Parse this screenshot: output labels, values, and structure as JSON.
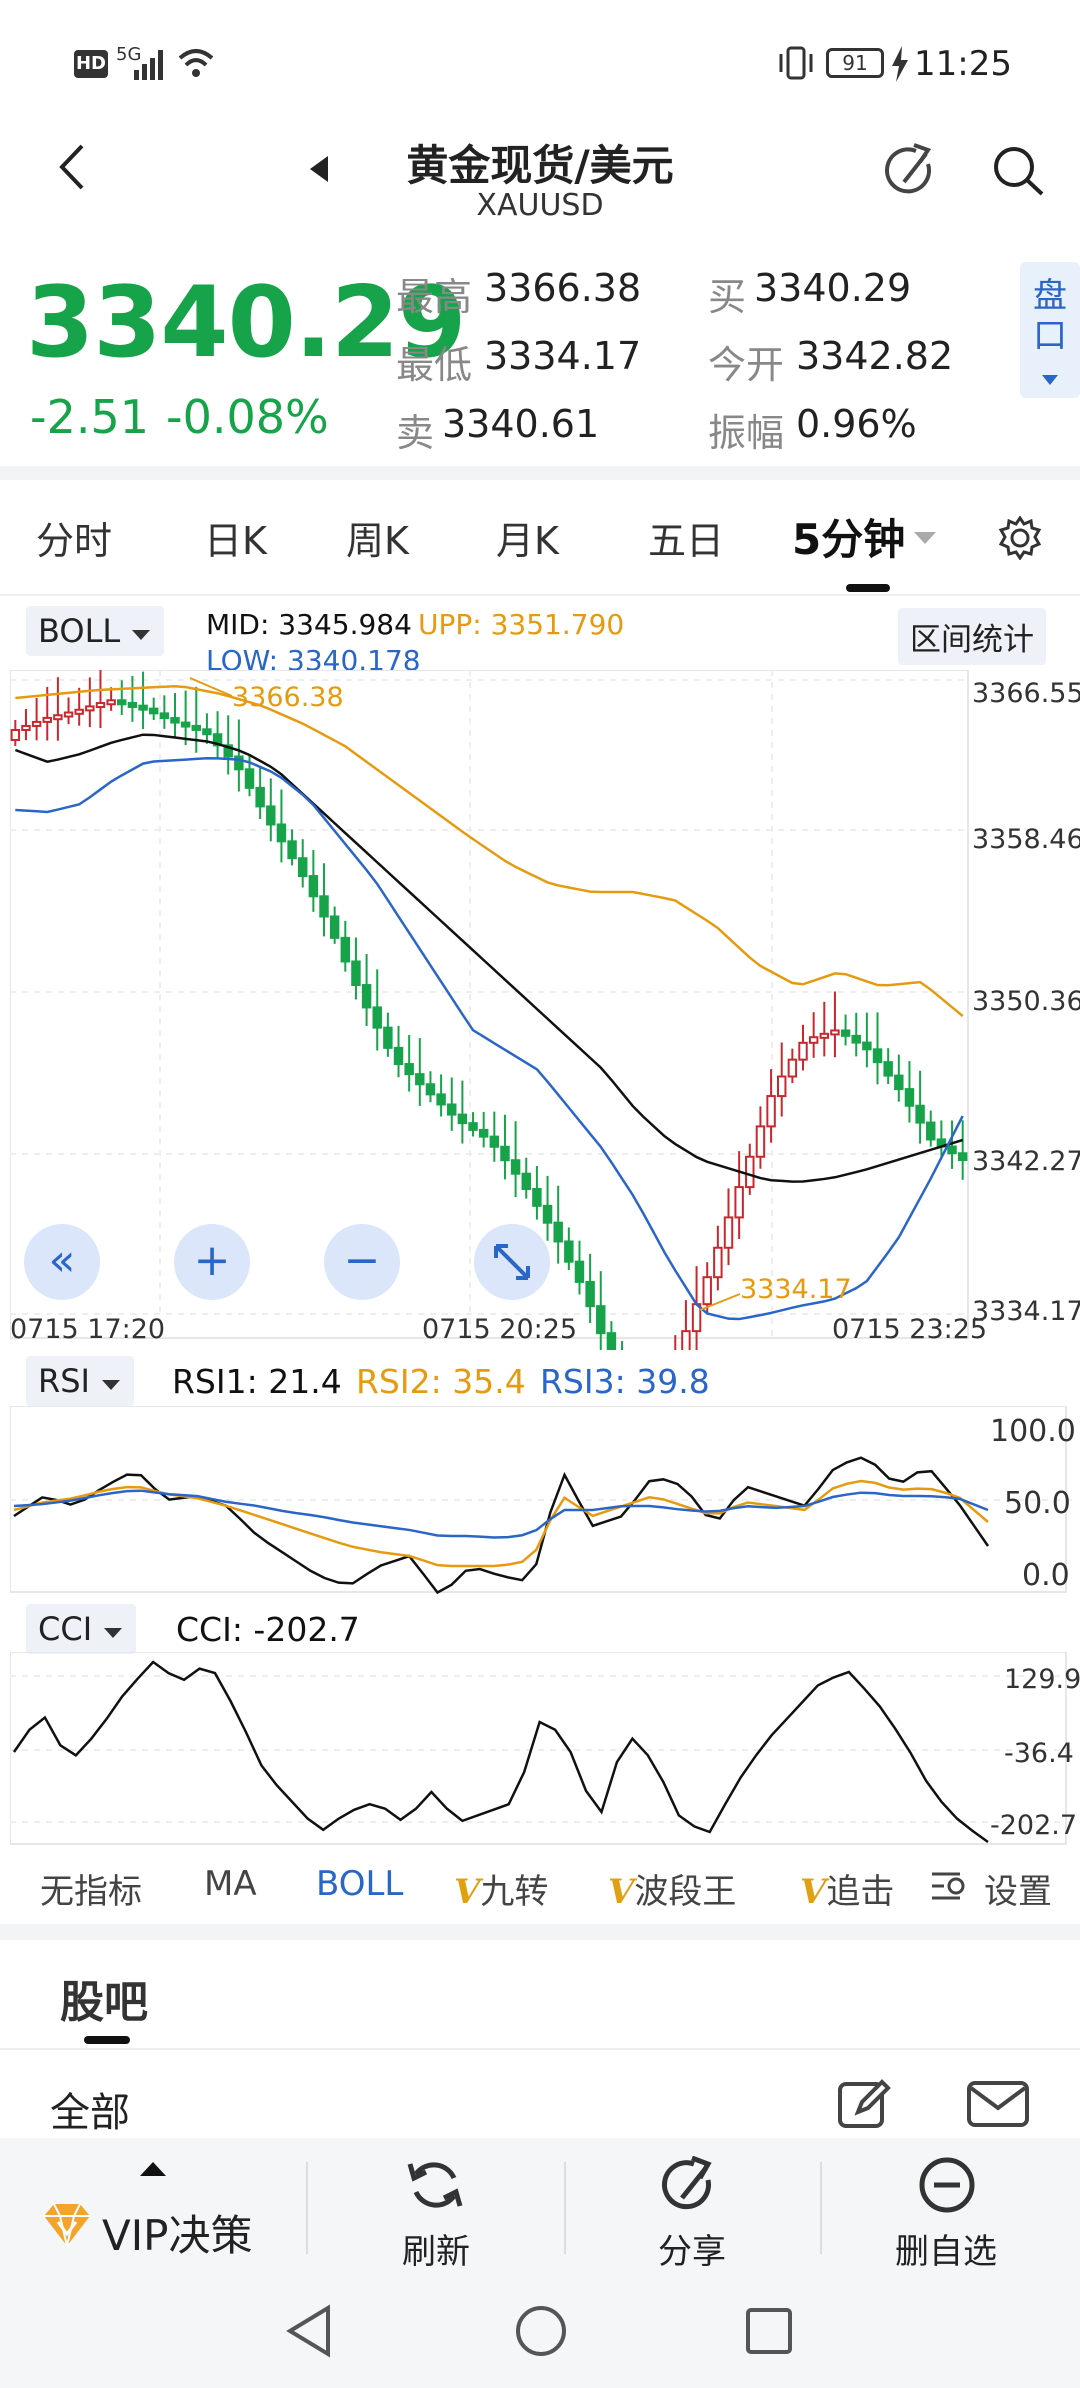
{
  "status_bar": {
    "network": "HD",
    "signal": "5G",
    "battery": "91",
    "time": "11:25"
  },
  "header": {
    "title": "黄金现货/美元",
    "symbol": "XAUUSD"
  },
  "quote": {
    "price": "3340.29",
    "change": "-2.51",
    "change_pct": "-0.08%",
    "high_label": "最高",
    "high": "3366.38",
    "low_label": "最低",
    "low": "3334.17",
    "sell_label": "卖",
    "sell": "3340.61",
    "buy_label": "买",
    "buy": "3340.29",
    "open_label": "今开",
    "open": "3342.82",
    "amp_label": "振幅",
    "amp": "0.96%",
    "pankou": "盘口"
  },
  "tabs": [
    "分时",
    "日K",
    "周K",
    "月K",
    "五日",
    "5分钟"
  ],
  "main_chart": {
    "indicator": "BOLL",
    "mid": "MID: 3345.984",
    "upp": "UPP: 3351.790",
    "low": "LOW: 3340.178",
    "range_btn": "区间统计",
    "y_labels": [
      "3366.55",
      "3358.46",
      "3350.36",
      "3342.27",
      "3334.17"
    ],
    "x_labels": [
      "0715  17:20",
      "0715  20:25",
      "0715  23:25"
    ],
    "high_mark": "3366.38",
    "low_mark": "3334.17"
  },
  "rsi": {
    "name": "RSI",
    "rsi1": "RSI1: 21.4",
    "rsi2": "RSI2: 35.4",
    "rsi3": "RSI3: 39.8",
    "y_labels": [
      "100.0",
      "50.0",
      "0.0"
    ]
  },
  "cci": {
    "name": "CCI",
    "value": "CCI: -202.7",
    "y_labels": [
      "129.9",
      "-36.4",
      "-202.7"
    ]
  },
  "indicator_tabs": {
    "none": "无指标",
    "ma": "MA",
    "boll": "BOLL",
    "jiuzhuan": "九转",
    "boduan": "波段王",
    "zhuiji": "追击",
    "vmark": "V",
    "settings": "设置"
  },
  "guba": {
    "title": "股吧",
    "all": "全部"
  },
  "bottom_nav": {
    "vip": "VIP决策",
    "refresh": "刷新",
    "share": "分享",
    "remove": "删自选"
  },
  "colors": {
    "up": "#c8282d",
    "down": "#16a34a",
    "upp": "#e69a10",
    "low": "#2a66c8",
    "mid": "#111111",
    "accent": "#2a66c8"
  }
}
